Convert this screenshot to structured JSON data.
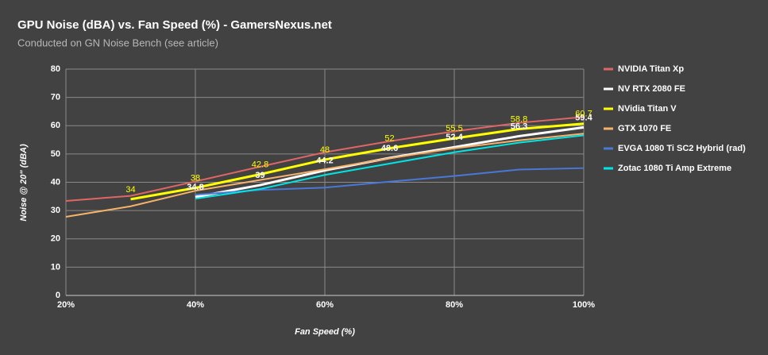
{
  "chart_data": {
    "type": "line",
    "title": "GPU Noise (dBA) vs. Fan Speed (%) - GamersNexus.net",
    "subtitle": "Conducted on GN Noise Bench (see article)",
    "x_label": "Fan Speed (%)",
    "y_label": "Noise @ 20\" (dBA)",
    "x": [
      20,
      30,
      40,
      50,
      60,
      70,
      80,
      90,
      100
    ],
    "xlim": [
      20,
      100
    ],
    "xticks": [
      {
        "value": 20,
        "label": "20%"
      },
      {
        "value": 40,
        "label": "40%"
      },
      {
        "value": 60,
        "label": "60%"
      },
      {
        "value": 80,
        "label": "80%"
      },
      {
        "value": 100,
        "label": "100%"
      }
    ],
    "ylim": [
      0,
      80
    ],
    "yticks": [
      0,
      10,
      20,
      30,
      40,
      50,
      60,
      70,
      80
    ],
    "grid": true,
    "legend": "right",
    "series": [
      {
        "name": "NVIDIA Titan Xp",
        "color": "#e06666",
        "values": [
          33.4,
          35.2,
          40.3,
          45.5,
          50.6,
          54.5,
          58,
          61,
          63.1
        ]
      },
      {
        "name": "NV RTX 2080 FE",
        "color": "#ffffff",
        "values": [
          null,
          null,
          34.8,
          39,
          44.2,
          48.6,
          52.4,
          56.3,
          59.4
        ],
        "show_values": true
      },
      {
        "name": "NVidia Titan V",
        "color": "#ffff00",
        "values": [
          null,
          34,
          38,
          42.8,
          48,
          52,
          55.5,
          58.8,
          60.7
        ],
        "show_values": true
      },
      {
        "name": "GTX 1070 FE",
        "color": "#f6b26b",
        "values": [
          27.8,
          31.5,
          37,
          40.8,
          44.6,
          48.5,
          52,
          54.8,
          57.2
        ]
      },
      {
        "name": "EVGA 1080 Ti SC2 Hybrid (rad)",
        "color": "#4a78d6",
        "values": [
          null,
          null,
          35.6,
          37.3,
          38.1,
          40.2,
          42.2,
          44.5,
          45
        ]
      },
      {
        "name": "Zotac 1080 Ti Amp Extreme",
        "color": "#00e5e5",
        "values": [
          null,
          null,
          34.2,
          37.6,
          42.6,
          46.6,
          50.6,
          54,
          56.6
        ]
      }
    ]
  }
}
